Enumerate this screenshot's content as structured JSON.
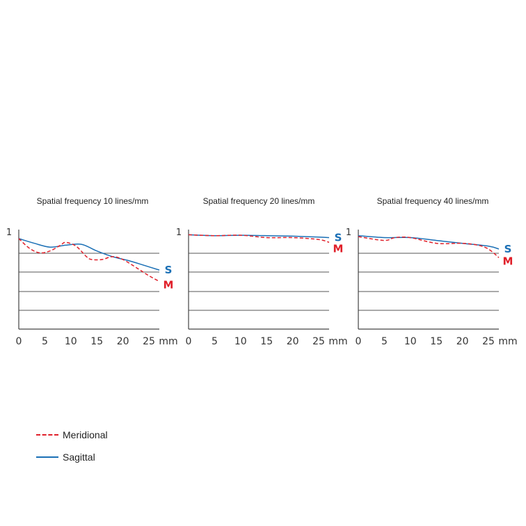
{
  "colors": {
    "meridional": "#e0202a",
    "sagittal": "#1a6fb5",
    "grid": "#555555",
    "axis": "#444444"
  },
  "legend": {
    "meridional_label": "Meridional",
    "sagittal_label": "Sagittal"
  },
  "chart_data": [
    {
      "type": "line",
      "title": "Spatial frequency 10 lines/mm",
      "x_ticks": [
        "0",
        "5",
        "10",
        "15",
        "20",
        "25"
      ],
      "x_unit": "mm",
      "y_tick_label": "1",
      "xlim": [
        0,
        27
      ],
      "ylim": [
        0,
        1
      ],
      "grid": "horizontal",
      "series": [
        {
          "name": "Sagittal",
          "end_label": "S",
          "style": "solid",
          "x": [
            0,
            3,
            6,
            9,
            12,
            15,
            18,
            21,
            24,
            27
          ],
          "y": [
            0.95,
            0.9,
            0.86,
            0.88,
            0.89,
            0.82,
            0.76,
            0.72,
            0.67,
            0.62
          ]
        },
        {
          "name": "Meridional",
          "end_label": "M",
          "style": "dashed",
          "x": [
            0,
            2,
            4,
            6,
            8,
            9,
            11,
            13,
            14,
            16,
            18,
            20,
            23,
            25,
            27
          ],
          "y": [
            0.95,
            0.85,
            0.8,
            0.82,
            0.88,
            0.91,
            0.87,
            0.76,
            0.73,
            0.73,
            0.76,
            0.73,
            0.63,
            0.56,
            0.5
          ]
        }
      ]
    },
    {
      "type": "line",
      "title": "Spatial frequency 20 lines/mm",
      "x_ticks": [
        "0",
        "5",
        "10",
        "15",
        "20",
        "25"
      ],
      "x_unit": "mm",
      "y_tick_label": "1",
      "xlim": [
        0,
        27
      ],
      "ylim": [
        0,
        1
      ],
      "grid": "horizontal",
      "series": [
        {
          "name": "Sagittal",
          "end_label": "S",
          "style": "solid",
          "x": [
            0,
            5,
            10,
            15,
            20,
            25,
            27
          ],
          "y": [
            0.99,
            0.98,
            0.985,
            0.98,
            0.975,
            0.965,
            0.96
          ]
        },
        {
          "name": "Meridional",
          "end_label": "M",
          "style": "dashed",
          "x": [
            0,
            5,
            10,
            15,
            20,
            25,
            27
          ],
          "y": [
            0.99,
            0.98,
            0.985,
            0.96,
            0.96,
            0.94,
            0.91
          ]
        }
      ]
    },
    {
      "type": "line",
      "title": "Spatial frequency 40 lines/mm",
      "x_ticks": [
        "0",
        "5",
        "10",
        "15",
        "20",
        "25"
      ],
      "x_unit": "mm",
      "y_tick_label": "1",
      "xlim": [
        0,
        27
      ],
      "ylim": [
        0,
        1
      ],
      "grid": "horizontal",
      "series": [
        {
          "name": "Sagittal",
          "end_label": "S",
          "style": "solid",
          "x": [
            0,
            5,
            10,
            15,
            20,
            25,
            27
          ],
          "y": [
            0.98,
            0.96,
            0.96,
            0.93,
            0.9,
            0.87,
            0.84
          ]
        },
        {
          "name": "Meridional",
          "end_label": "M",
          "style": "dashed",
          "x": [
            0,
            5,
            7,
            10,
            15,
            20,
            23,
            25,
            27
          ],
          "y": [
            0.97,
            0.93,
            0.96,
            0.96,
            0.9,
            0.9,
            0.88,
            0.84,
            0.75
          ]
        }
      ]
    }
  ]
}
